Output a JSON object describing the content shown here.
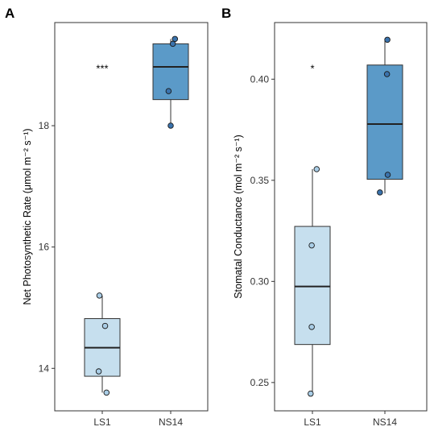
{
  "chart_data": [
    {
      "type": "box",
      "panel": "A",
      "ylabel": "Net Photosynthetic Rate (μmol m⁻² s⁻¹)",
      "ylim": [
        13.3,
        19.7
      ],
      "yticks": [
        14,
        16,
        18
      ],
      "categories": [
        "LS1",
        "NS14"
      ],
      "colors": {
        "LS1": "#c6dfee",
        "NS14": "#5b9ac8"
      },
      "point_colors": {
        "LS1": "#a9cde6",
        "NS14": "#3a73ad"
      },
      "boxes": [
        {
          "category": "LS1",
          "whisker_low": 13.6,
          "q1": 13.87,
          "median": 14.34,
          "q3": 14.82,
          "whisker_high": 15.2
        },
        {
          "category": "NS14",
          "whisker_low": 18.0,
          "q1": 18.43,
          "median": 18.97,
          "q3": 19.35,
          "whisker_high": 19.43
        }
      ],
      "points": [
        {
          "category": "LS1",
          "values": [
            15.2,
            14.7,
            13.95,
            13.6
          ],
          "jitter": [
            -0.08,
            0.08,
            -0.1,
            0.12
          ]
        },
        {
          "category": "NS14",
          "values": [
            19.43,
            19.35,
            18.57,
            18.0
          ],
          "jitter": [
            0.12,
            0.06,
            -0.06,
            0.0
          ]
        }
      ],
      "significance": "***",
      "significance_y": 18.95,
      "grid": false
    },
    {
      "type": "box",
      "panel": "B",
      "ylabel": "Stomatal Conductance (mol m⁻² s⁻¹)",
      "ylim": [
        0.236,
        0.428
      ],
      "yticks": [
        "0.25",
        "0.30",
        "0.35",
        "0.40"
      ],
      "categories": [
        "LS1",
        "NS14"
      ],
      "colors": {
        "LS1": "#c6dfee",
        "NS14": "#5b9ac8"
      },
      "point_colors": {
        "LS1": "#a9cde6",
        "NS14": "#3a73ad"
      },
      "boxes": [
        {
          "category": "LS1",
          "whisker_low": 0.2445,
          "q1": 0.2688,
          "median": 0.2975,
          "q3": 0.3272,
          "whisker_high": 0.3555
        },
        {
          "category": "NS14",
          "whisker_low": 0.3435,
          "q1": 0.3505,
          "median": 0.3778,
          "q3": 0.407,
          "whisker_high": 0.4195
        }
      ],
      "points": [
        {
          "category": "LS1",
          "values": [
            0.3555,
            0.3178,
            0.2775,
            0.2445
          ],
          "jitter": [
            0.12,
            -0.02,
            -0.02,
            -0.05
          ]
        },
        {
          "category": "NS14",
          "values": [
            0.4195,
            0.4025,
            0.3527,
            0.344
          ],
          "jitter": [
            0.07,
            0.06,
            0.08,
            -0.14
          ]
        }
      ],
      "significance": "*",
      "significance_y": 0.4055,
      "grid": false
    }
  ]
}
